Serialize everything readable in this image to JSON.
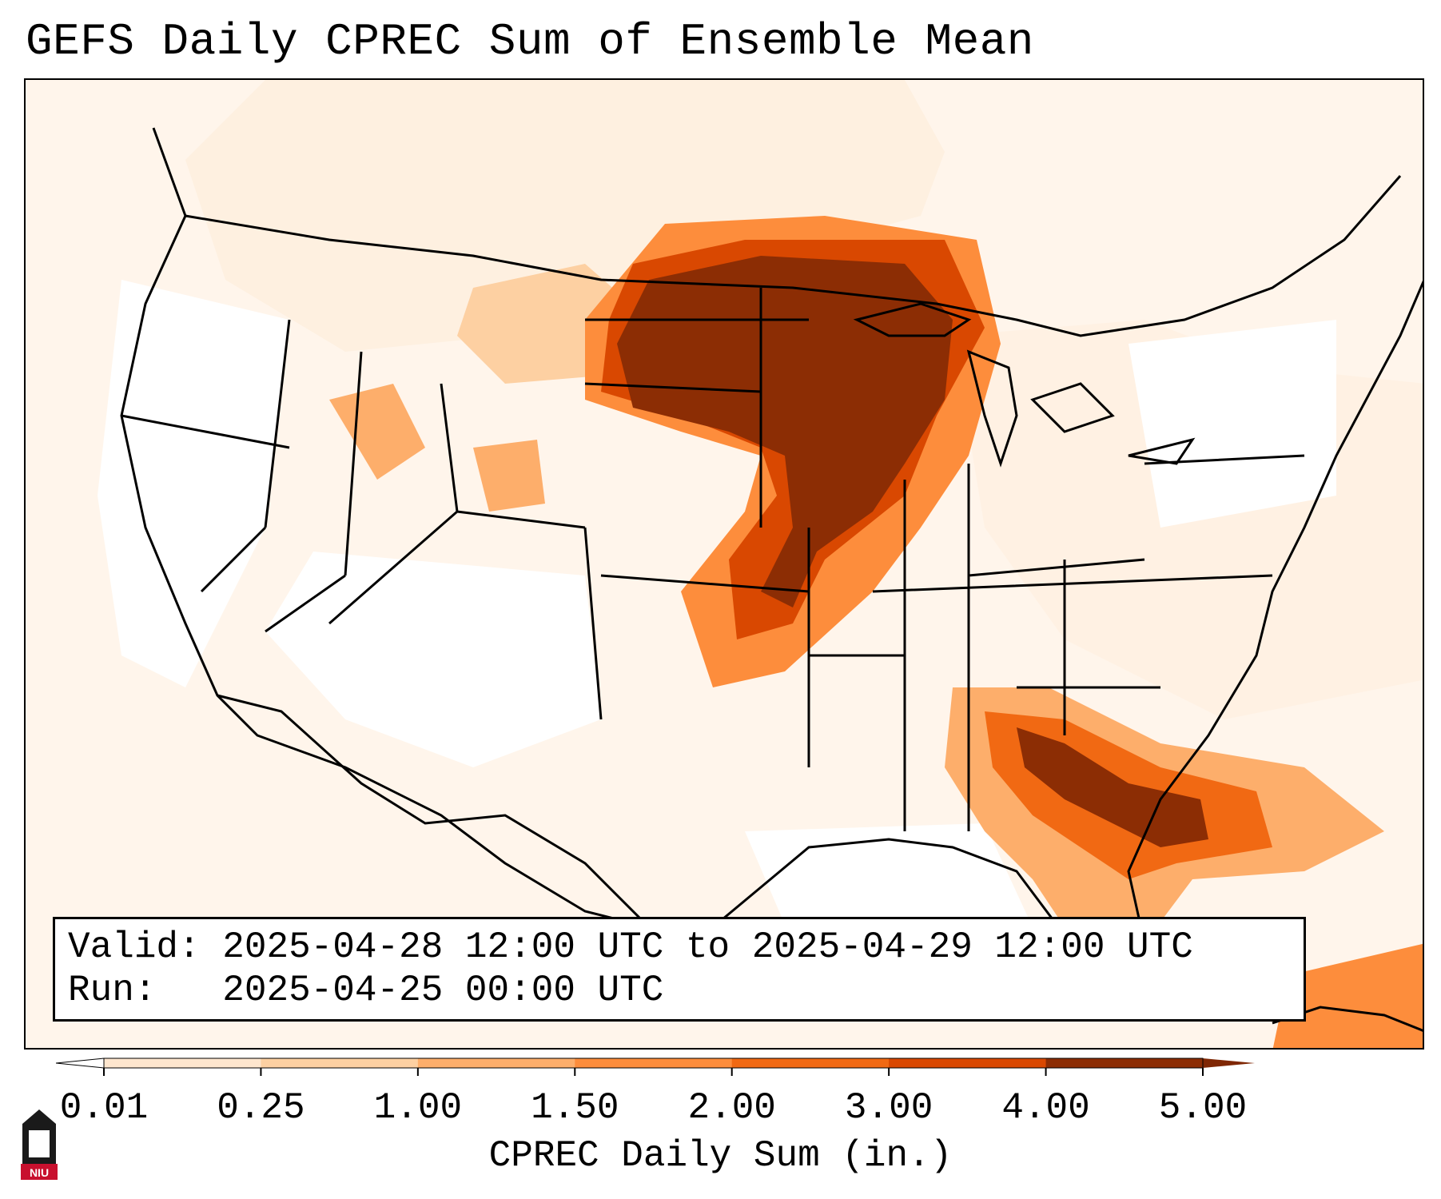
{
  "title": "GEFS Daily CPREC Sum of Ensemble Mean",
  "info": {
    "valid_label": "Valid:",
    "valid_value": "2025-04-28 12:00 UTC to 2025-04-29 12:00 UTC",
    "run_label": "Run:",
    "run_value": "2025-04-25 00:00 UTC"
  },
  "colorbar": {
    "label": "CPREC Daily Sum (in.)",
    "ticks": [
      "0.01",
      "0.25",
      "1.00",
      "1.50",
      "2.00",
      "3.00",
      "4.00",
      "5.00"
    ],
    "colors": [
      "#fff5eb",
      "#fee6ce",
      "#fdd0a2",
      "#fdae6b",
      "#fd8d3c",
      "#f16913",
      "#d94801",
      "#8c2d04"
    ],
    "extend_min_color": "#ffffff",
    "extend_max_color": "#7f2704"
  },
  "map": {
    "region": "CONUS",
    "heavy_areas": [
      "Upper Midwest",
      "Southeast"
    ]
  },
  "logo": {
    "text": "NIU",
    "color": "#c8102e"
  }
}
